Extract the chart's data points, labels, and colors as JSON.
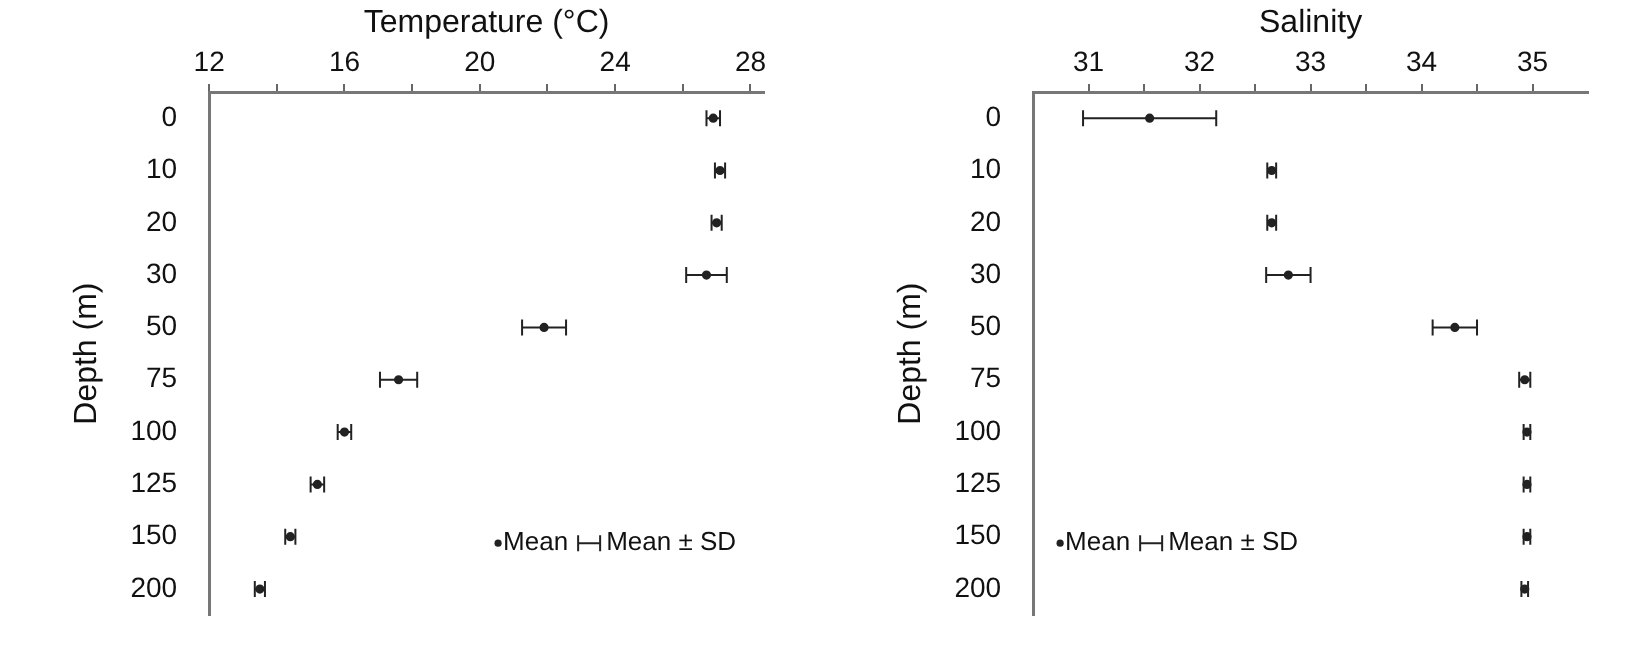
{
  "chart_data": [
    {
      "type": "scatter",
      "xlabel": "Temperature (°C)",
      "ylabel": "Depth (m)",
      "orientation": "horizontal",
      "legend": "bottom right",
      "marker": "circle",
      "annotations": [
        "Mean ± SD"
      ],
      "categories": [
        "0",
        "10",
        "20",
        "30",
        "50",
        "75",
        "100",
        "125",
        "150",
        "200"
      ],
      "xlim": [
        12,
        28.4
      ],
      "xticks": [
        12,
        {
          "value": 14,
          "label": null
        },
        16,
        {
          "value": 18,
          "label": null
        },
        20,
        {
          "value": 22,
          "label": null
        },
        24,
        {
          "value": 26,
          "label": null
        },
        28
      ],
      "series": [
        {
          "name": "Mean",
          "color": "#222222",
          "values": [
            26.9,
            27.1,
            27.0,
            26.7,
            21.9,
            17.6,
            16.0,
            15.2,
            14.4,
            13.5
          ],
          "errors": [
            0.2,
            0.15,
            0.15,
            0.6,
            0.65,
            0.55,
            0.2,
            0.2,
            0.15,
            0.15
          ]
        }
      ]
    },
    {
      "type": "scatter",
      "xlabel": "Salinity",
      "ylabel": "Depth (m)",
      "orientation": "horizontal",
      "legend": "bottom left",
      "marker": "circle",
      "annotations": [
        "Mean ± SD"
      ],
      "categories": [
        "0",
        "10",
        "20",
        "30",
        "50",
        "75",
        "100",
        "125",
        "150",
        "200"
      ],
      "xlim": [
        30.5,
        35.5
      ],
      "xticks": [
        31,
        {
          "value": 31.5,
          "label": null
        },
        32,
        {
          "value": 32.5,
          "label": null
        },
        33,
        {
          "value": 33.5,
          "label": null
        },
        34,
        {
          "value": 34.5,
          "label": null
        },
        35
      ],
      "series": [
        {
          "name": "Mean",
          "color": "#222222",
          "values": [
            31.55,
            32.65,
            32.65,
            32.8,
            34.3,
            34.93,
            34.95,
            34.95,
            34.95,
            34.93
          ],
          "errors": [
            0.6,
            0.04,
            0.04,
            0.2,
            0.2,
            0.05,
            0.03,
            0.03,
            0.03,
            0.03
          ]
        }
      ]
    }
  ]
}
